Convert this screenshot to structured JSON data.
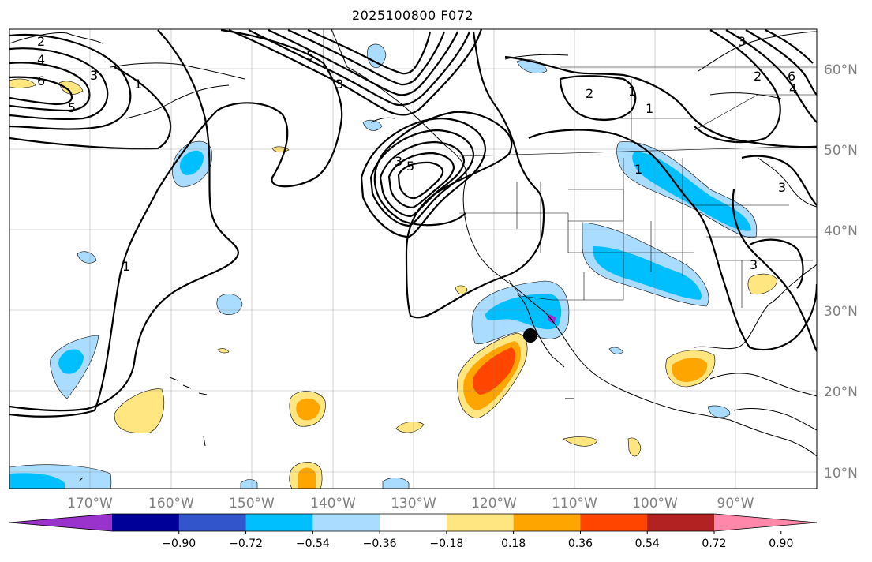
{
  "title": "2025100800 F072",
  "map": {
    "projection": "PlateCarree",
    "lon_range": [
      -180,
      -80
    ],
    "lat_range": [
      7.5,
      65
    ],
    "gridlines": true,
    "lat_labels": [
      "10°N",
      "20°N",
      "30°N",
      "40°N",
      "50°N",
      "60°N"
    ],
    "lon_labels": [
      "170°W",
      "160°W",
      "150°W",
      "140°W",
      "130°W",
      "120°W",
      "110°W",
      "100°W",
      "90°W"
    ],
    "marker": {
      "lon": -115.5,
      "lat": 27,
      "color": "#000000"
    },
    "contour_labels": [
      "2",
      "4",
      "6",
      "3",
      "5",
      "1",
      "1",
      "3",
      "5",
      "3",
      "5",
      "2",
      "1",
      "1",
      "1",
      "3",
      "3",
      "6",
      "4",
      "2",
      "3"
    ]
  },
  "colorbar": {
    "levels": [
      "−0.90",
      "−0.72",
      "−0.54",
      "−0.36",
      "−0.18",
      "0.18",
      "0.36",
      "0.54",
      "0.72",
      "0.90"
    ],
    "colors": [
      "#9933cc",
      "#000099",
      "#3355cc",
      "#00bfff",
      "#aadcff",
      "#ffffff",
      "#ffe680",
      "#ffa500",
      "#ff4500",
      "#b22222",
      "#ff88aa"
    ],
    "extend": "both"
  }
}
